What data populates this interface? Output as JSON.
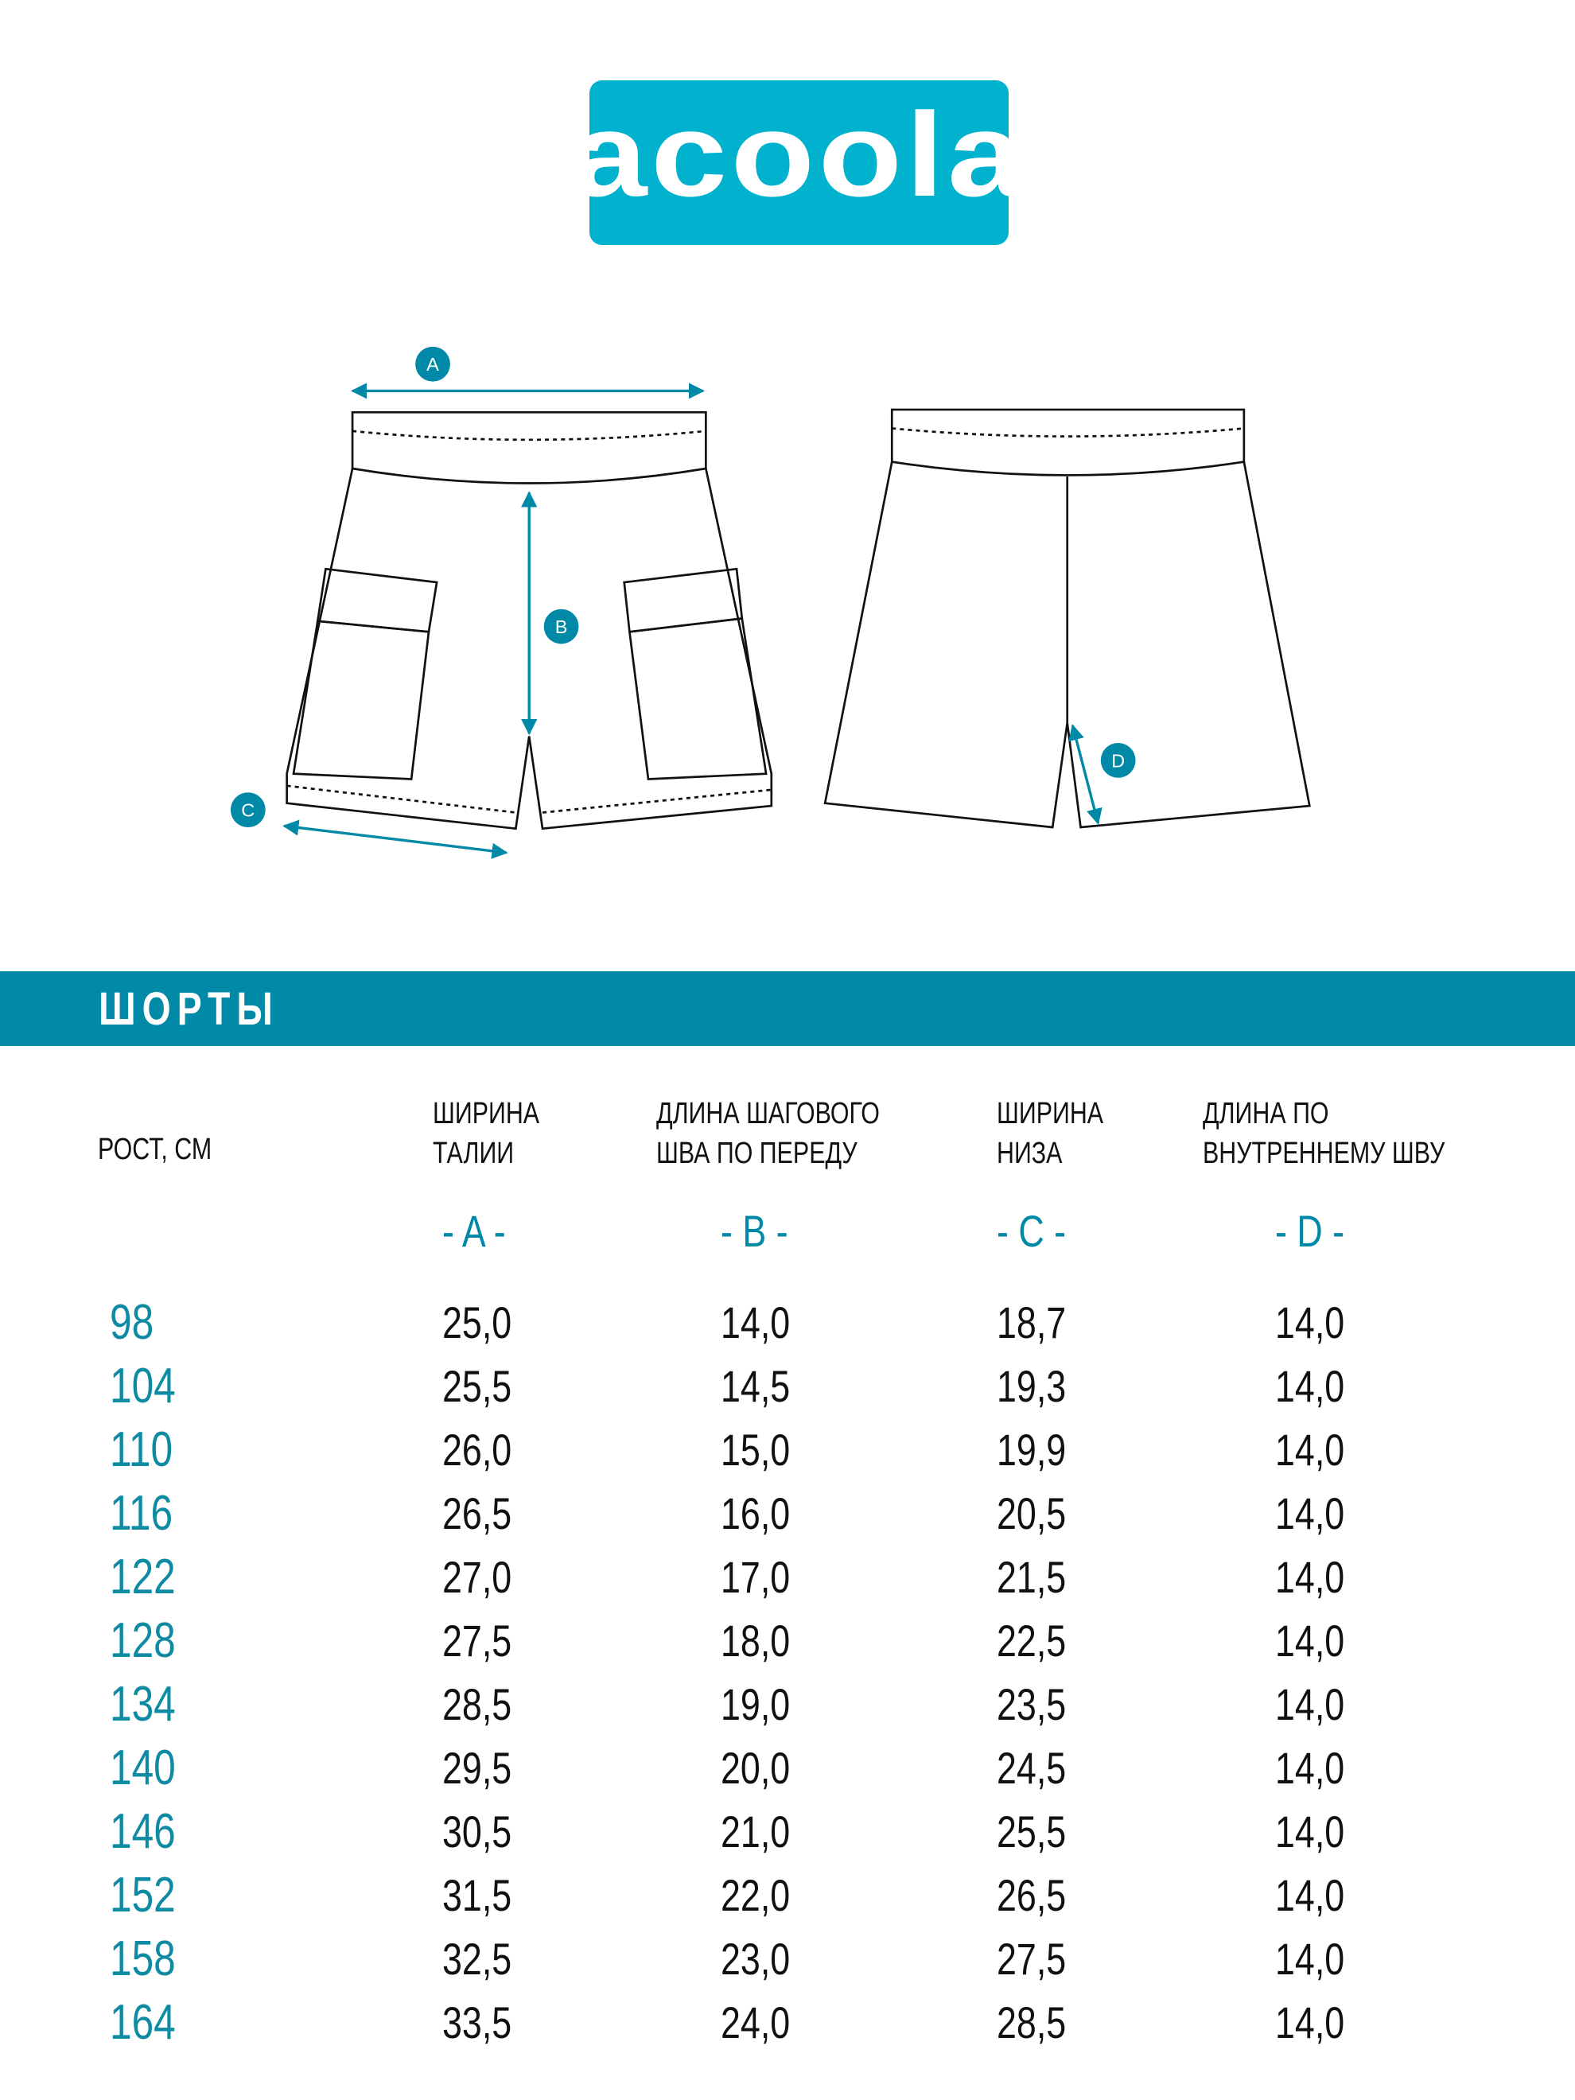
{
  "brand": {
    "logo_text": "acoola",
    "color": "#00b2ce"
  },
  "diagram": {
    "labels": [
      "A",
      "B",
      "C",
      "D"
    ],
    "accent": "#0089a7"
  },
  "section": {
    "title": "ШОРТЫ",
    "color": "#008aa7"
  },
  "table": {
    "row_header": "РОСТ, СМ",
    "columns": [
      {
        "line1": "ШИРИНА",
        "line2": "ТАЛИИ",
        "letter": "- A -"
      },
      {
        "line1": "ДЛИНА ШАГОВОГО",
        "line2": "ШВА ПО ПЕРЕДУ",
        "letter": "- B -"
      },
      {
        "line1": "ШИРИНА",
        "line2": "НИЗА",
        "letter": "- C -"
      },
      {
        "line1": "ДЛИНА ПО",
        "line2": "ВНУТРЕННЕМУ ШВУ",
        "letter": "- D -"
      }
    ],
    "rows": [
      {
        "size": "98",
        "values": [
          "25,0",
          "14,0",
          "18,7",
          "14,0"
        ]
      },
      {
        "size": "104",
        "values": [
          "25,5",
          "14,5",
          "19,3",
          "14,0"
        ]
      },
      {
        "size": "110",
        "values": [
          "26,0",
          "15,0",
          "19,9",
          "14,0"
        ]
      },
      {
        "size": "116",
        "values": [
          "26,5",
          "16,0",
          "20,5",
          "14,0"
        ]
      },
      {
        "size": "122",
        "values": [
          "27,0",
          "17,0",
          "21,5",
          "14,0"
        ]
      },
      {
        "size": "128",
        "values": [
          "27,5",
          "18,0",
          "22,5",
          "14,0"
        ]
      },
      {
        "size": "134",
        "values": [
          "28,5",
          "19,0",
          "23,5",
          "14,0"
        ]
      },
      {
        "size": "140",
        "values": [
          "29,5",
          "20,0",
          "24,5",
          "14,0"
        ]
      },
      {
        "size": "146",
        "values": [
          "30,5",
          "21,0",
          "25,5",
          "14,0"
        ]
      },
      {
        "size": "152",
        "values": [
          "31,5",
          "22,0",
          "26,5",
          "14,0"
        ]
      },
      {
        "size": "158",
        "values": [
          "32,5",
          "23,0",
          "27,5",
          "14,0"
        ]
      },
      {
        "size": "164",
        "values": [
          "33,5",
          "24,0",
          "28,5",
          "14,0"
        ]
      }
    ]
  }
}
